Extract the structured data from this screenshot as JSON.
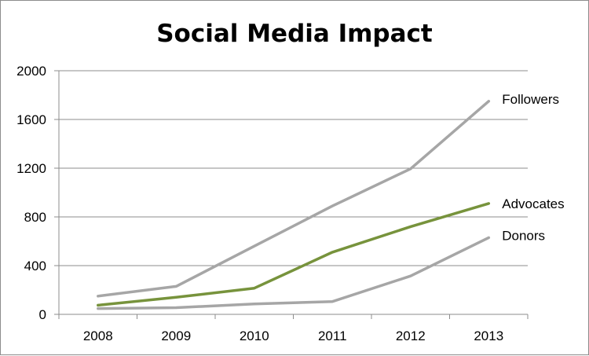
{
  "chart_data": {
    "type": "line",
    "title": "Social Media Impact",
    "xlabel": "",
    "ylabel": "",
    "categories": [
      "2008",
      "2009",
      "2010",
      "2011",
      "2012",
      "2013"
    ],
    "ylim": [
      0,
      2000
    ],
    "yticks": [
      0,
      400,
      800,
      1200,
      1600,
      2000
    ],
    "grid": true,
    "legend": "none",
    "series": [
      {
        "name": "Followers",
        "color": "#a6a6a6",
        "values": [
          150,
          230,
          560,
          890,
          1195,
          1750
        ]
      },
      {
        "name": "Advocates",
        "color": "#77933c",
        "values": [
          75,
          140,
          215,
          510,
          720,
          910
        ]
      },
      {
        "name": "Donors",
        "color": "#a6a6a6",
        "values": [
          48,
          55,
          85,
          105,
          315,
          630
        ]
      }
    ]
  }
}
